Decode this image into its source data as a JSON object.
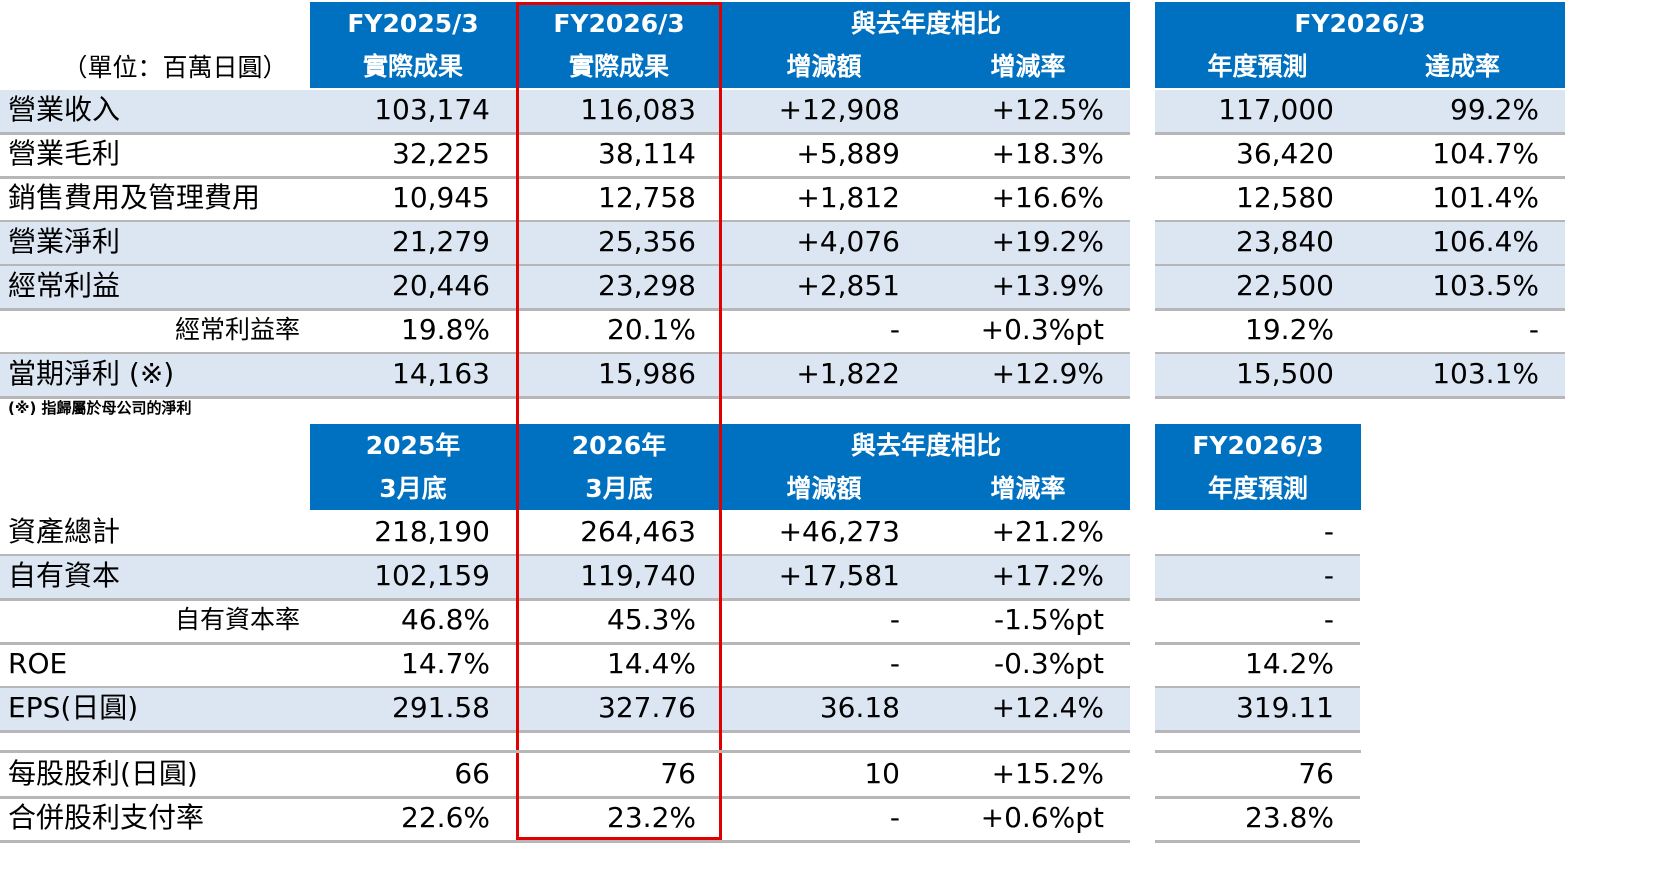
{
  "unit_label": "（單位：百萬日圓）",
  "table1": {
    "header": {
      "col1_top": "FY2025/3",
      "col1_bottom": "實際成果",
      "col2_top": "FY2026/3",
      "col2_bottom": "實際成果",
      "compare_top": "與去年度相比",
      "diff": "增減額",
      "rate": "增減率",
      "forecast_top": "FY2026/3",
      "forecast": "年度預測",
      "achieve": "達成率"
    },
    "rows": [
      {
        "label": "營業收入",
        "fy2025": "103,174",
        "fy2026": "116,083",
        "diff": "+12,908",
        "rate": "+12.5%",
        "forecast": "117,000",
        "achieve": "99.2%"
      },
      {
        "label": "營業毛利",
        "fy2025": "32,225",
        "fy2026": "38,114",
        "diff": "+5,889",
        "rate": "+18.3%",
        "forecast": "36,420",
        "achieve": "104.7%"
      },
      {
        "label": "銷售費用及管理費用",
        "fy2025": "10,945",
        "fy2026": "12,758",
        "diff": "+1,812",
        "rate": "+16.6%",
        "forecast": "12,580",
        "achieve": "101.4%"
      },
      {
        "label": "營業淨利",
        "fy2025": "21,279",
        "fy2026": "25,356",
        "diff": "+4,076",
        "rate": "+19.2%",
        "forecast": "23,840",
        "achieve": "106.4%"
      },
      {
        "label": "經常利益",
        "fy2025": "20,446",
        "fy2026": "23,298",
        "diff": "+2,851",
        "rate": "+13.9%",
        "forecast": "22,500",
        "achieve": "103.5%"
      },
      {
        "label": "經常利益率",
        "fy2025": "19.8%",
        "fy2026": "20.1%",
        "diff": "-",
        "rate": "+0.3%pt",
        "forecast": "19.2%",
        "achieve": "-"
      },
      {
        "label": "當期淨利 (※)",
        "fy2025": "14,163",
        "fy2026": "15,986",
        "diff": "+1,822",
        "rate": "+12.9%",
        "forecast": "15,500",
        "achieve": "103.1%"
      }
    ],
    "footnote": "(※) 指歸屬於母公司的淨利"
  },
  "table2": {
    "header": {
      "col1_top": "2025年",
      "col1_bottom": "3月底",
      "col2_top": "2026年",
      "col2_bottom": "3月底",
      "compare_top": "與去年度相比",
      "diff": "增減額",
      "rate": "增減率",
      "forecast_top": "FY2026/3",
      "forecast": "年度預測"
    },
    "rows": [
      {
        "label": "資產總計",
        "fy2025": "218,190",
        "fy2026": "264,463",
        "diff": "+46,273",
        "rate": "+21.2%",
        "forecast": "-"
      },
      {
        "label": "自有資本",
        "fy2025": "102,159",
        "fy2026": "119,740",
        "diff": "+17,581",
        "rate": "+17.2%",
        "forecast": "-"
      },
      {
        "label": "自有資本率",
        "fy2025": "46.8%",
        "fy2026": "45.3%",
        "diff": "-",
        "rate": "-1.5%pt",
        "forecast": "-"
      },
      {
        "label": "ROE",
        "fy2025": "14.7%",
        "fy2026": "14.4%",
        "diff": "-",
        "rate": "-0.3%pt",
        "forecast": "14.2%"
      },
      {
        "label": "EPS(日圓)",
        "fy2025": "291.58",
        "fy2026": "327.76",
        "diff": "36.18",
        "rate": "+12.4%",
        "forecast": "319.11"
      },
      {
        "label": "每股股利(日圓)",
        "fy2025": "66",
        "fy2026": "76",
        "diff": "10",
        "rate": "+15.2%",
        "forecast": "76"
      },
      {
        "label": "合併股利支付率",
        "fy2025": "22.6%",
        "fy2026": "23.2%",
        "diff": "-",
        "rate": "+0.6%pt",
        "forecast": "23.8%"
      }
    ]
  },
  "colors": {
    "header_blue": "#0070c0",
    "row_tint": "#dce6f2",
    "highlight_red": "#e00000"
  }
}
